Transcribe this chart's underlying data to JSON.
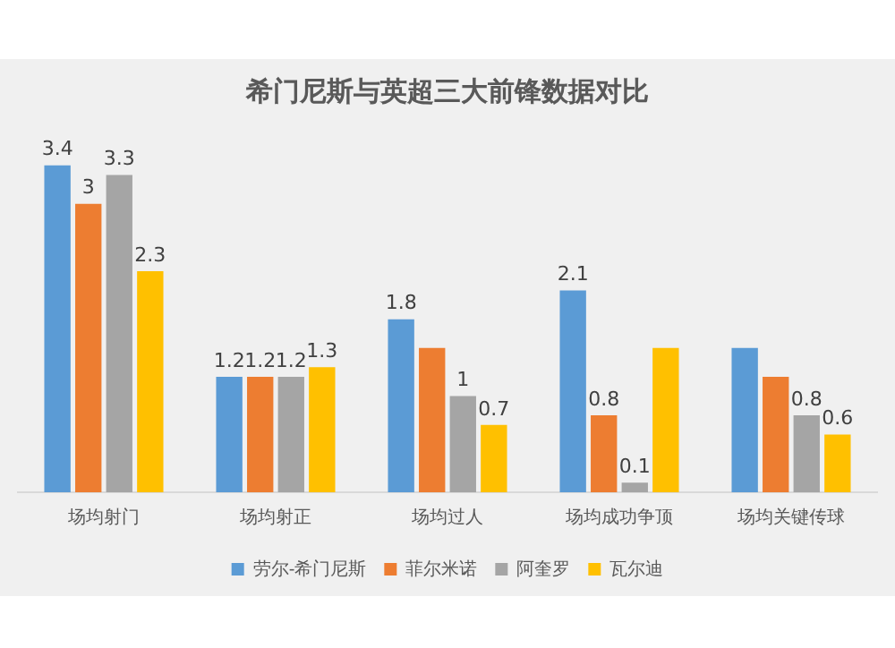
{
  "chart_data": {
    "type": "bar",
    "title": "希门尼斯与英超三大前锋数据对比",
    "categories": [
      "场均射门",
      "场均射正",
      "场均过人",
      "场均成功争顶",
      "场均关键传球"
    ],
    "series": [
      {
        "name": "劳尔-希门尼斯",
        "color": "#5b9bd5",
        "values": [
          3.4,
          1.2,
          1.8,
          2.1,
          1.5
        ],
        "value_labels": [
          "3.4",
          "1.2",
          "1.8",
          "2.1",
          null
        ]
      },
      {
        "name": "菲尔米诺",
        "color": "#ed7d31",
        "values": [
          3,
          1.2,
          1.5,
          0.8,
          1.2
        ],
        "value_labels": [
          "3",
          "1.2",
          null,
          "0.8",
          null
        ]
      },
      {
        "name": "阿奎罗",
        "color": "#a5a5a5",
        "values": [
          3.3,
          1.2,
          1,
          0.1,
          0.8
        ],
        "value_labels": [
          "3.3",
          "1.2",
          "1",
          "0.1",
          "0.8"
        ]
      },
      {
        "name": "瓦尔迪",
        "color": "#ffc000",
        "values": [
          2.3,
          1.3,
          0.7,
          1.5,
          0.6
        ],
        "value_labels": [
          "2.3",
          "1.3",
          "0.7",
          null,
          "0.6"
        ]
      }
    ],
    "legend": "bottom",
    "grid": false
  }
}
